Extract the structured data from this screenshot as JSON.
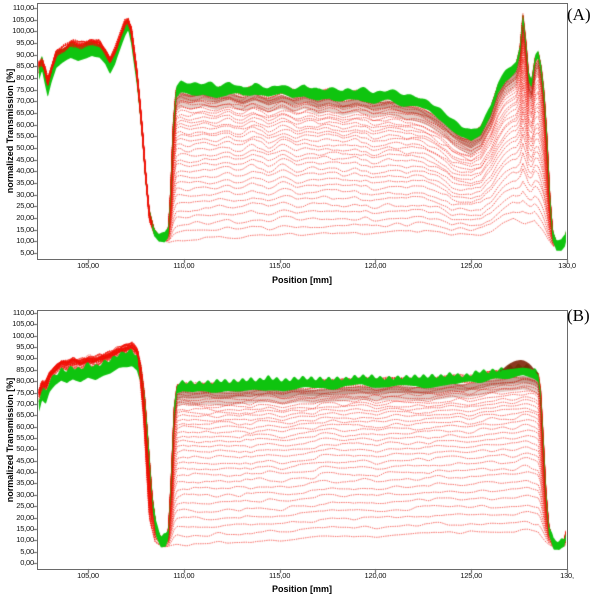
{
  "chart_data": [
    {
      "type": "line",
      "panel_label": "(A)",
      "xlabel": "Position [mm]",
      "ylabel": "normalized Transmission [%]",
      "x_range": [
        102.34,
        130.0
      ],
      "y_range": [
        2.4,
        112.0
      ],
      "x_ticks": [
        {
          "mm": 105,
          "label": "105,00"
        },
        {
          "mm": 110,
          "label": "110,00"
        },
        {
          "mm": 115,
          "label": "115,00"
        },
        {
          "mm": 120,
          "label": "120,00"
        },
        {
          "mm": 125,
          "label": "125,00"
        },
        {
          "mm": 130,
          "label": "130,0"
        }
      ],
      "y_ticks": [
        {
          "value": 110,
          "label": "110,00"
        },
        {
          "value": 105,
          "label": "105,00"
        },
        {
          "value": 100,
          "label": "100,00"
        },
        {
          "value": 95,
          "label": "95,00"
        },
        {
          "value": 90,
          "label": "90,00"
        },
        {
          "value": 85,
          "label": "85,00"
        },
        {
          "value": 80,
          "label": "80,00"
        },
        {
          "value": 75,
          "label": "75,00"
        },
        {
          "value": 70,
          "label": "70,00"
        },
        {
          "value": 65,
          "label": "65,00"
        },
        {
          "value": 60,
          "label": "60,00"
        },
        {
          "value": 55,
          "label": "55,00"
        },
        {
          "value": 50,
          "label": "50,00"
        },
        {
          "value": 45,
          "label": "45,00"
        },
        {
          "value": 40,
          "label": "40,00"
        },
        {
          "value": 35,
          "label": "35,00"
        },
        {
          "value": 30,
          "label": "30,00"
        },
        {
          "value": 25,
          "label": "25,00"
        },
        {
          "value": 20,
          "label": "20,00"
        },
        {
          "value": 15,
          "label": "15,00"
        },
        {
          "value": 10,
          "label": "10,00"
        },
        {
          "value": 5,
          "label": "5,00"
        }
      ],
      "colors": {
        "trace": "#f01408",
        "band": "#0fc40f",
        "dark": "#8a2408"
      },
      "series": {
        "n_traces": 48,
        "fan_exponent": 2.55,
        "left_region_end_mm": 107.6,
        "left_spread": {
          "mode": "stacked",
          "amp": 5,
          "off": -2
        },
        "wiggle": {
          "base": 0.9,
          "mid": 2.6
        },
        "green_band": {
          "above": 1.3,
          "below": 3.2
        },
        "green_band_left": {
          "above": 0.5,
          "below": 5.0
        },
        "scallop": {
          "wavelength": 0.8,
          "amp": 0.4
        },
        "dark_under": true,
        "dark_over": null,
        "redraw_left_threshold": 0.55,
        "top_envelope": [
          [
            102.45,
            85
          ],
          [
            102.6,
            89
          ],
          [
            102.75,
            83
          ],
          [
            102.9,
            77.5
          ],
          [
            103.1,
            84
          ],
          [
            103.35,
            90
          ],
          [
            103.7,
            92
          ],
          [
            104.1,
            94
          ],
          [
            104.5,
            93
          ],
          [
            104.9,
            94
          ],
          [
            105.2,
            95
          ],
          [
            105.6,
            94
          ],
          [
            105.9,
            91
          ],
          [
            106.15,
            86.5
          ],
          [
            106.4,
            90
          ],
          [
            106.7,
            97
          ],
          [
            106.95,
            103
          ],
          [
            107.1,
            105.5
          ],
          [
            107.25,
            100
          ],
          [
            107.4,
            91
          ],
          [
            107.55,
            82
          ],
          [
            107.7,
            70
          ],
          [
            107.85,
            56
          ],
          [
            108.0,
            39
          ],
          [
            108.2,
            23
          ],
          [
            108.45,
            15
          ],
          [
            108.7,
            12.5
          ],
          [
            109.0,
            12.5
          ],
          [
            109.2,
            15
          ],
          [
            109.32,
            32
          ],
          [
            109.45,
            60
          ],
          [
            109.6,
            75
          ],
          [
            109.85,
            77
          ],
          [
            110.4,
            76
          ],
          [
            111.0,
            77
          ],
          [
            111.7,
            75.5
          ],
          [
            112.4,
            77
          ],
          [
            113.1,
            75
          ],
          [
            113.7,
            76.5
          ],
          [
            114.4,
            74.5
          ],
          [
            115.1,
            76
          ],
          [
            115.7,
            74.5
          ],
          [
            116.3,
            76
          ],
          [
            117.0,
            73.5
          ],
          [
            117.6,
            75
          ],
          [
            118.3,
            73
          ],
          [
            119.1,
            74.5
          ],
          [
            119.9,
            72.5
          ],
          [
            120.7,
            73.5
          ],
          [
            121.5,
            71.5
          ],
          [
            122.2,
            70.5
          ],
          [
            122.8,
            68.5
          ],
          [
            123.4,
            65
          ],
          [
            124.0,
            61
          ],
          [
            124.5,
            58
          ],
          [
            125.0,
            56
          ],
          [
            125.5,
            59
          ],
          [
            126.0,
            67
          ],
          [
            126.4,
            77
          ],
          [
            126.8,
            82
          ],
          [
            127.1,
            84
          ],
          [
            127.35,
            86
          ],
          [
            127.55,
            93
          ],
          [
            127.7,
            107
          ],
          [
            127.85,
            96
          ],
          [
            128.0,
            81
          ],
          [
            128.15,
            78
          ],
          [
            128.35,
            89
          ],
          [
            128.5,
            91
          ],
          [
            128.65,
            85
          ],
          [
            128.8,
            74
          ],
          [
            128.95,
            55
          ],
          [
            129.1,
            30
          ],
          [
            129.25,
            14
          ],
          [
            129.45,
            9.5
          ],
          [
            129.7,
            9
          ],
          [
            129.9,
            11
          ],
          [
            130.1,
            19
          ],
          [
            130.25,
            22
          ]
        ],
        "bottom_envelope": [
          [
            102.45,
            83
          ],
          [
            102.75,
            81
          ],
          [
            102.9,
            75.5
          ],
          [
            103.35,
            88
          ],
          [
            104.1,
            92
          ],
          [
            104.9,
            92
          ],
          [
            105.6,
            92
          ],
          [
            106.15,
            84.5
          ],
          [
            106.95,
            101
          ],
          [
            107.25,
            98
          ],
          [
            107.55,
            79
          ],
          [
            107.85,
            52
          ],
          [
            108.2,
            18
          ],
          [
            108.5,
            12
          ],
          [
            108.9,
            10.5
          ],
          [
            109.25,
            9.5
          ],
          [
            109.6,
            10
          ],
          [
            110.2,
            11
          ],
          [
            111.2,
            11.5
          ],
          [
            112.2,
            12
          ],
          [
            113.2,
            12
          ],
          [
            114.2,
            12.5
          ],
          [
            115.2,
            13
          ],
          [
            116.6,
            13
          ],
          [
            118.0,
            13.5
          ],
          [
            119.5,
            13.5
          ],
          [
            121.0,
            14
          ],
          [
            122.5,
            14.5
          ],
          [
            124.0,
            13.5
          ],
          [
            125.2,
            13
          ],
          [
            126.0,
            14
          ],
          [
            126.6,
            17
          ],
          [
            127.2,
            19.5
          ],
          [
            127.8,
            17.5
          ],
          [
            128.3,
            19.5
          ],
          [
            128.7,
            15
          ],
          [
            129.0,
            11
          ],
          [
            129.3,
            8
          ],
          [
            129.6,
            8
          ],
          [
            129.9,
            9.5
          ],
          [
            130.1,
            14
          ],
          [
            130.25,
            18
          ]
        ]
      }
    },
    {
      "type": "line",
      "panel_label": "(B)",
      "xlabel": "Position [mm]",
      "ylabel": "normalized Transmission [%]",
      "x_range": [
        102.34,
        130.0
      ],
      "y_range": [
        -3.0,
        111.5
      ],
      "x_ticks": [
        {
          "mm": 105,
          "label": "105,00"
        },
        {
          "mm": 110,
          "label": "110,00"
        },
        {
          "mm": 115,
          "label": "115,00"
        },
        {
          "mm": 120,
          "label": "120,00"
        },
        {
          "mm": 125,
          "label": "125,00"
        },
        {
          "mm": 130,
          "label": "130,"
        }
      ],
      "y_ticks": [
        {
          "value": 110,
          "label": "110,00"
        },
        {
          "value": 105,
          "label": "105,00"
        },
        {
          "value": 100,
          "label": "100,00"
        },
        {
          "value": 95,
          "label": "95,00"
        },
        {
          "value": 90,
          "label": "90,00"
        },
        {
          "value": 85,
          "label": "85,00"
        },
        {
          "value": 80,
          "label": "80,00"
        },
        {
          "value": 75,
          "label": "75,00"
        },
        {
          "value": 70,
          "label": "70,00"
        },
        {
          "value": 65,
          "label": "65,00"
        },
        {
          "value": 60,
          "label": "60,00"
        },
        {
          "value": 55,
          "label": "55,00"
        },
        {
          "value": 50,
          "label": "50,00"
        },
        {
          "value": 45,
          "label": "45,00"
        },
        {
          "value": 40,
          "label": "40,00"
        },
        {
          "value": 35,
          "label": "35,00"
        },
        {
          "value": 30,
          "label": "30,00"
        },
        {
          "value": 25,
          "label": "25,00"
        },
        {
          "value": 20,
          "label": "20,00"
        },
        {
          "value": 15,
          "label": "15,00"
        },
        {
          "value": 10,
          "label": "10,00"
        },
        {
          "value": 5,
          "label": "5,00"
        },
        {
          "value": 0,
          "label": "0,00"
        }
      ],
      "colors": {
        "trace": "#f01408",
        "band": "#0fc40f",
        "dark": "#7e2208"
      },
      "series": {
        "n_traces": 44,
        "fan_exponent": 2.4,
        "left_region_end_mm": 107.6,
        "left_spread": {
          "mode": "stacked",
          "amp": 6,
          "off": -1.5
        },
        "wiggle": {
          "base": 0.6,
          "mid": 1.2
        },
        "green_band": {
          "above": 1.2,
          "below": 3.2
        },
        "green_band_left": {
          "above": -1.5,
          "below": 7.5
        },
        "scallop": {
          "wavelength": 0.45,
          "amp": 0.8
        },
        "dark_under": true,
        "dark_over": {
          "from": 126.5,
          "to": 128.5,
          "above0": 0.5,
          "above1": 3.6
        },
        "redraw_left_threshold": 0.6,
        "top_envelope": [
          [
            102.45,
            74
          ],
          [
            102.6,
            79
          ],
          [
            102.8,
            77
          ],
          [
            103.0,
            82
          ],
          [
            103.3,
            85
          ],
          [
            103.6,
            87
          ],
          [
            103.9,
            86
          ],
          [
            104.2,
            88
          ],
          [
            104.6,
            87
          ],
          [
            105.0,
            89
          ],
          [
            105.4,
            88
          ],
          [
            105.8,
            90
          ],
          [
            106.2,
            91
          ],
          [
            106.6,
            93
          ],
          [
            107.0,
            94
          ],
          [
            107.3,
            95
          ],
          [
            107.55,
            93
          ],
          [
            107.75,
            87
          ],
          [
            107.95,
            74
          ],
          [
            108.15,
            52
          ],
          [
            108.35,
            29
          ],
          [
            108.55,
            16
          ],
          [
            108.8,
            11
          ],
          [
            109.05,
            11
          ],
          [
            109.2,
            14
          ],
          [
            109.35,
            38
          ],
          [
            109.5,
            68
          ],
          [
            109.65,
            78
          ],
          [
            109.95,
            79
          ],
          [
            110.5,
            78.5
          ],
          [
            111.2,
            79
          ],
          [
            112.0,
            78.5
          ],
          [
            112.8,
            79
          ],
          [
            113.6,
            79.5
          ],
          [
            114.4,
            80
          ],
          [
            115.2,
            79
          ],
          [
            116.0,
            80
          ],
          [
            116.8,
            79.5
          ],
          [
            117.6,
            80
          ],
          [
            118.4,
            80.5
          ],
          [
            119.2,
            81
          ],
          [
            120.0,
            80.5
          ],
          [
            120.8,
            81
          ],
          [
            121.6,
            81
          ],
          [
            122.4,
            80.5
          ],
          [
            123.2,
            81
          ],
          [
            124.0,
            82
          ],
          [
            124.8,
            82
          ],
          [
            125.5,
            83
          ],
          [
            126.1,
            84
          ],
          [
            126.7,
            84.5
          ],
          [
            127.2,
            85
          ],
          [
            127.7,
            85.5
          ],
          [
            128.1,
            85
          ],
          [
            128.3,
            84.5
          ],
          [
            128.5,
            83
          ],
          [
            128.62,
            76
          ],
          [
            128.75,
            56
          ],
          [
            128.9,
            31
          ],
          [
            129.05,
            16
          ],
          [
            129.3,
            9
          ],
          [
            129.6,
            8.5
          ],
          [
            129.85,
            10
          ],
          [
            130.0,
            15
          ],
          [
            130.1,
            22
          ],
          [
            130.25,
            25
          ]
        ],
        "bottom_envelope": [
          [
            102.45,
            70
          ],
          [
            102.7,
            73
          ],
          [
            103.0,
            78
          ],
          [
            103.6,
            83
          ],
          [
            104.2,
            84
          ],
          [
            105.0,
            85
          ],
          [
            105.8,
            86
          ],
          [
            106.6,
            89
          ],
          [
            107.3,
            91
          ],
          [
            107.6,
            88
          ],
          [
            107.9,
            60
          ],
          [
            108.2,
            18
          ],
          [
            108.5,
            9
          ],
          [
            108.9,
            7
          ],
          [
            109.3,
            7
          ],
          [
            110.0,
            8
          ],
          [
            111.0,
            8.5
          ],
          [
            112.0,
            9
          ],
          [
            113.0,
            9.5
          ],
          [
            114.0,
            10
          ],
          [
            115.0,
            10
          ],
          [
            116.0,
            10.5
          ],
          [
            117.0,
            11
          ],
          [
            118.0,
            11
          ],
          [
            119.0,
            11.5
          ],
          [
            120.0,
            12
          ],
          [
            121.0,
            12
          ],
          [
            122.0,
            12.5
          ],
          [
            123.0,
            13
          ],
          [
            124.0,
            13
          ],
          [
            125.0,
            13.5
          ],
          [
            126.0,
            13.5
          ],
          [
            127.0,
            14
          ],
          [
            128.0,
            14
          ],
          [
            128.5,
            13
          ],
          [
            128.9,
            9
          ],
          [
            129.3,
            7
          ],
          [
            129.7,
            7
          ],
          [
            130.0,
            8
          ],
          [
            130.25,
            12
          ]
        ]
      }
    }
  ]
}
